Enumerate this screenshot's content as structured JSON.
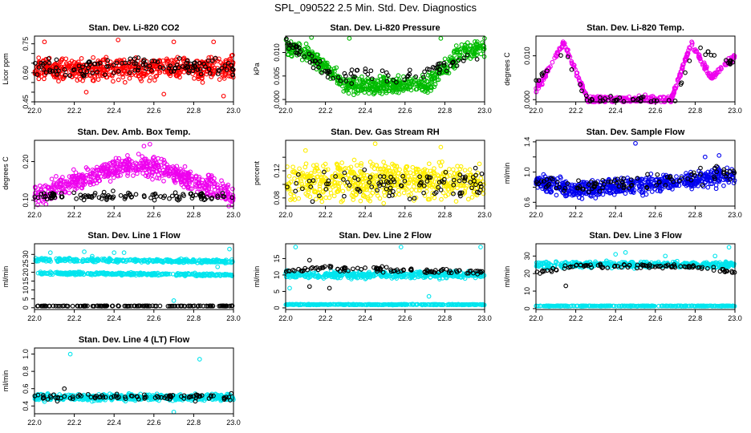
{
  "figure_title": "SPL_090522  2.5 Min. Std. Dev. Diagnostics",
  "chart_data": [
    {
      "type": "scatter",
      "title": "Stan. Dev. Li-820 CO2",
      "xlabel": "",
      "ylabel": "Licor ppm",
      "xlim": [
        22.0,
        23.0
      ],
      "ylim": [
        0.45,
        0.79
      ],
      "xticks": [
        "22.0",
        "22.2",
        "22.4",
        "22.6",
        "22.8",
        "23.0"
      ],
      "yticks": [
        "0.45",
        "0.60",
        "0.75"
      ],
      "yticks_minor": [
        "0.50",
        "0.55",
        "0.65",
        "0.70"
      ],
      "colors": {
        "dense": "#ff0000",
        "sparse": "#000000"
      },
      "series": [
        {
          "name": "dense",
          "color": "#ff0000",
          "n": 600,
          "segments": [
            {
              "x0": 22.0,
              "x1": 23.0,
              "y0": 0.62,
              "y1": 0.62
            }
          ],
          "spread": 0.05,
          "outliers": [
            [
              22.05,
              0.76
            ],
            [
              22.42,
              0.77
            ],
            [
              22.7,
              0.76
            ],
            [
              22.9,
              0.76
            ],
            [
              22.26,
              0.5
            ],
            [
              22.65,
              0.49
            ],
            [
              22.95,
              0.48
            ]
          ]
        },
        {
          "name": "sparse",
          "color": "#000000",
          "n": 120,
          "segments": [
            {
              "x0": 22.0,
              "x1": 23.0,
              "y0": 0.63,
              "y1": 0.63
            }
          ],
          "spread": 0.04,
          "outliers": []
        }
      ]
    },
    {
      "type": "scatter",
      "title": "Stan. Dev. Li-820 Pressure",
      "xlabel": "",
      "ylabel": "kPa",
      "xlim": [
        22.0,
        23.0
      ],
      "ylim": [
        -0.0005,
        0.0135
      ],
      "xticks": [
        "22.0",
        "22.2",
        "22.4",
        "22.6",
        "22.8",
        "23.0"
      ],
      "yticks": [
        "0.000",
        "0.005",
        "0.010"
      ],
      "colors": {
        "dense": "#00bb00",
        "sparse": "#000000"
      },
      "series": [
        {
          "name": "dense",
          "color": "#00bb00",
          "n": 600,
          "segments": [
            {
              "x0": 22.0,
              "x1": 22.12,
              "y0": 0.011,
              "y1": 0.01
            },
            {
              "x0": 22.12,
              "x1": 22.3,
              "y0": 0.01,
              "y1": 0.003
            },
            {
              "x0": 22.3,
              "x1": 22.7,
              "y0": 0.003,
              "y1": 0.003
            },
            {
              "x0": 22.7,
              "x1": 22.88,
              "y0": 0.003,
              "y1": 0.01
            },
            {
              "x0": 22.88,
              "x1": 23.0,
              "y0": 0.01,
              "y1": 0.011
            }
          ],
          "spread": 0.0016,
          "outliers": [
            [
              22.32,
              0.013
            ],
            [
              22.78,
              0.013
            ],
            [
              23.0,
              0.013
            ],
            [
              22.13,
              0.0132
            ]
          ]
        },
        {
          "name": "sparse",
          "color": "#000000",
          "n": 90,
          "segments": [
            {
              "x0": 22.0,
              "x1": 22.25,
              "y0": 0.012,
              "y1": 0.005
            },
            {
              "x0": 22.25,
              "x1": 22.7,
              "y0": 0.005,
              "y1": 0.005
            },
            {
              "x0": 22.7,
              "x1": 23.0,
              "y0": 0.006,
              "y1": 0.01
            }
          ],
          "spread": 0.0012,
          "outliers": []
        }
      ]
    },
    {
      "type": "scatter",
      "title": "Stan. Dev. Li-820 Temp.",
      "xlabel": "",
      "ylabel": "degrees C",
      "xlim": [
        22.0,
        23.0
      ],
      "ylim": [
        -0.0005,
        0.0145
      ],
      "xticks": [
        "22.0",
        "22.2",
        "22.4",
        "22.6",
        "22.8",
        "23.0"
      ],
      "yticks": [
        "0.000",
        "0.010"
      ],
      "colors": {
        "dense": "#ee00ee",
        "sparse": "#000000"
      },
      "series": [
        {
          "name": "dense",
          "color": "#ee00ee",
          "n": 420,
          "segments": [
            {
              "x0": 22.0,
              "x1": 22.14,
              "y0": 0.002,
              "y1": 0.013
            },
            {
              "x0": 22.14,
              "x1": 22.26,
              "y0": 0.013,
              "y1": 0.0
            },
            {
              "x0": 22.26,
              "x1": 22.68,
              "y0": 0.0,
              "y1": 0.0
            },
            {
              "x0": 22.68,
              "x1": 22.78,
              "y0": 0.0,
              "y1": 0.013
            },
            {
              "x0": 22.78,
              "x1": 22.88,
              "y0": 0.013,
              "y1": 0.005
            },
            {
              "x0": 22.88,
              "x1": 23.0,
              "y0": 0.005,
              "y1": 0.01
            }
          ],
          "spread": 0.0007,
          "outliers": []
        },
        {
          "name": "sparse",
          "color": "#000000",
          "n": 60,
          "segments": [
            {
              "x0": 22.0,
              "x1": 22.14,
              "y0": 0.004,
              "y1": 0.011
            },
            {
              "x0": 22.14,
              "x1": 22.26,
              "y0": 0.011,
              "y1": 0.0
            },
            {
              "x0": 22.26,
              "x1": 22.7,
              "y0": 0.0,
              "y1": 0.0
            },
            {
              "x0": 22.7,
              "x1": 22.8,
              "y0": 0.0,
              "y1": 0.012
            },
            {
              "x0": 22.8,
              "x1": 23.0,
              "y0": 0.012,
              "y1": 0.008
            }
          ],
          "spread": 0.0006,
          "outliers": []
        }
      ]
    },
    {
      "type": "scatter",
      "title": "Stan. Dev. Amb. Box Temp.",
      "xlabel": "",
      "ylabel": "degrees C",
      "xlim": [
        22.0,
        23.0
      ],
      "ylim": [
        0.085,
        0.255
      ],
      "xticks": [
        "22.0",
        "22.2",
        "22.4",
        "22.6",
        "22.8",
        "23.0"
      ],
      "yticks": [
        "0.10",
        "0.20"
      ],
      "colors": {
        "dense": "#ee00ee",
        "sparse": "#000000"
      },
      "series": [
        {
          "name": "dense",
          "color": "#ee00ee",
          "n": 600,
          "segments": [
            {
              "x0": 22.0,
              "x1": 22.45,
              "y0": 0.11,
              "y1": 0.19
            },
            {
              "x0": 22.45,
              "x1": 22.6,
              "y0": 0.19,
              "y1": 0.19
            },
            {
              "x0": 22.6,
              "x1": 23.0,
              "y0": 0.19,
              "y1": 0.11
            }
          ],
          "spread": 0.022,
          "outliers": [
            [
              22.58,
              0.245
            ],
            [
              22.55,
              0.24
            ]
          ]
        },
        {
          "name": "sparse",
          "color": "#000000",
          "n": 110,
          "segments": [
            {
              "x0": 22.0,
              "x1": 23.0,
              "y0": 0.11,
              "y1": 0.11
            }
          ],
          "spread": 0.009,
          "outliers": []
        }
      ]
    },
    {
      "type": "scatter",
      "title": "Stan. Dev. Gas Stream RH",
      "xlabel": "",
      "ylabel": "percent",
      "xlim": [
        22.0,
        23.0
      ],
      "ylim": [
        0.068,
        0.165
      ],
      "xticks": [
        "22.0",
        "22.2",
        "22.4",
        "22.6",
        "22.8",
        "23.0"
      ],
      "yticks": [
        "0.08",
        "0.12"
      ],
      "yticks_minor": [
        "0.10",
        "0.14"
      ],
      "colors": {
        "dense": "#ffee00",
        "sparse": "#000000"
      },
      "series": [
        {
          "name": "dense",
          "color": "#ffee00",
          "n": 600,
          "segments": [
            {
              "x0": 22.0,
              "x1": 23.0,
              "y0": 0.105,
              "y1": 0.105
            }
          ],
          "spread": 0.022,
          "outliers": [
            [
              22.45,
              0.16
            ],
            [
              22.78,
              0.155
            ],
            [
              22.1,
              0.15
            ]
          ]
        },
        {
          "name": "sparse",
          "color": "#000000",
          "n": 100,
          "segments": [
            {
              "x0": 22.0,
              "x1": 23.0,
              "y0": 0.1,
              "y1": 0.1
            }
          ],
          "spread": 0.018,
          "outliers": []
        }
      ]
    },
    {
      "type": "scatter",
      "title": "Stan. Dev. Sample Flow",
      "xlabel": "",
      "ylabel": "ml/min",
      "xlim": [
        22.0,
        23.0
      ],
      "ylim": [
        0.55,
        1.42
      ],
      "xticks": [
        "22.0",
        "22.2",
        "22.4",
        "22.6",
        "22.8",
        "23.0"
      ],
      "yticks": [
        "0.6",
        "1.0",
        "1.4"
      ],
      "yticks_minor": [
        "0.8",
        "1.2"
      ],
      "colors": {
        "dense": "#0000ee",
        "sparse": "#000000"
      },
      "series": [
        {
          "name": "dense",
          "color": "#0000ee",
          "n": 600,
          "segments": [
            {
              "x0": 22.0,
              "x1": 22.2,
              "y0": 0.88,
              "y1": 0.75
            },
            {
              "x0": 22.2,
              "x1": 22.4,
              "y0": 0.75,
              "y1": 0.8
            },
            {
              "x0": 22.4,
              "x1": 23.0,
              "y0": 0.8,
              "y1": 0.95
            }
          ],
          "spread": 0.09,
          "outliers": [
            [
              22.5,
              1.38
            ],
            [
              22.85,
              1.2
            ],
            [
              22.92,
              1.22
            ]
          ]
        },
        {
          "name": "sparse",
          "color": "#000000",
          "n": 90,
          "segments": [
            {
              "x0": 22.0,
              "x1": 22.2,
              "y0": 0.9,
              "y1": 0.78
            },
            {
              "x0": 22.2,
              "x1": 23.0,
              "y0": 0.78,
              "y1": 1.0
            }
          ],
          "spread": 0.08,
          "outliers": []
        }
      ]
    },
    {
      "type": "scatter",
      "title": "Stan. Dev. Line 1 Flow",
      "xlabel": "",
      "ylabel": "ml/min",
      "xlim": [
        22.0,
        23.0
      ],
      "ylim": [
        -1,
        36
      ],
      "xticks": [
        "22.0",
        "22.2",
        "22.4",
        "22.6",
        "22.8",
        "23.0"
      ],
      "yticks": [
        "0",
        "5",
        "10",
        "15",
        "20",
        "25",
        "30"
      ],
      "colors": {
        "dense": "#00e5ee",
        "sparse": "#000000"
      },
      "series": [
        {
          "name": "upper",
          "color": "#00e5ee",
          "n": 320,
          "segments": [
            {
              "x0": 22.0,
              "x1": 23.0,
              "y0": 27,
              "y1": 26
            }
          ],
          "spread": 0.8,
          "outliers": [
            [
              22.08,
              31
            ],
            [
              22.29,
              29
            ],
            [
              22.25,
              31.5
            ],
            [
              22.4,
              31
            ],
            [
              22.45,
              31
            ],
            [
              22.92,
              23
            ],
            [
              22.98,
              33
            ]
          ]
        },
        {
          "name": "lower",
          "color": "#00e5ee",
          "n": 320,
          "segments": [
            {
              "x0": 22.0,
              "x1": 23.0,
              "y0": 19.5,
              "y1": 18.5
            }
          ],
          "spread": 0.6,
          "outliers": [
            [
              22.7,
              4
            ]
          ]
        },
        {
          "name": "baseline",
          "color": "#000000",
          "n": 140,
          "segments": [
            {
              "x0": 22.0,
              "x1": 23.0,
              "y0": 1.0,
              "y1": 1.0
            }
          ],
          "spread": 0.1,
          "outliers": []
        }
      ]
    },
    {
      "type": "scatter",
      "title": "Stan. Dev. Line 2 Flow",
      "xlabel": "",
      "ylabel": "ml/min",
      "xlim": [
        22.0,
        23.0
      ],
      "ylim": [
        -0.5,
        19.5
      ],
      "xticks": [
        "22.0",
        "22.2",
        "22.4",
        "22.6",
        "22.8",
        "23.0"
      ],
      "yticks": [
        "0",
        "5",
        "10",
        "15"
      ],
      "colors": {
        "dense": "#00e5ee",
        "sparse": "#000000"
      },
      "series": [
        {
          "name": "upper",
          "color": "#00e5ee",
          "n": 420,
          "segments": [
            {
              "x0": 22.0,
              "x1": 23.0,
              "y0": 10,
              "y1": 10
            }
          ],
          "spread": 0.9,
          "outliers": [
            [
              22.05,
              18.5
            ],
            [
              22.58,
              18.5
            ],
            [
              22.98,
              18.5
            ],
            [
              22.72,
              3.5
            ],
            [
              22.02,
              6
            ]
          ]
        },
        {
          "name": "lower",
          "color": "#00e5ee",
          "n": 300,
          "segments": [
            {
              "x0": 22.0,
              "x1": 23.0,
              "y0": 1.0,
              "y1": 1.0
            }
          ],
          "spread": 0.1,
          "outliers": []
        },
        {
          "name": "sparse",
          "color": "#000000",
          "n": 100,
          "segments": [
            {
              "x0": 22.0,
              "x1": 22.2,
              "y0": 11,
              "y1": 12
            },
            {
              "x0": 22.2,
              "x1": 23.0,
              "y0": 12,
              "y1": 11
            }
          ],
          "spread": 0.6,
          "outliers": [
            [
              22.12,
              14.5
            ],
            [
              22.12,
              6.5
            ],
            [
              22.22,
              6
            ]
          ]
        }
      ]
    },
    {
      "type": "scatter",
      "title": "Stan. Dev. Line 3 Flow",
      "xlabel": "",
      "ylabel": "ml/min",
      "xlim": [
        22.0,
        23.0
      ],
      "ylim": [
        -0.5,
        37
      ],
      "xticks": [
        "22.0",
        "22.2",
        "22.4",
        "22.6",
        "22.8",
        "23.0"
      ],
      "yticks": [
        "0",
        "10",
        "20",
        "30"
      ],
      "colors": {
        "dense": "#00e5ee",
        "sparse": "#000000"
      },
      "series": [
        {
          "name": "upper",
          "color": "#00e5ee",
          "n": 420,
          "segments": [
            {
              "x0": 22.0,
              "x1": 23.0,
              "y0": 25,
              "y1": 25
            }
          ],
          "spread": 1.4,
          "outliers": [
            [
              22.4,
              31
            ],
            [
              22.45,
              32
            ],
            [
              22.65,
              30
            ],
            [
              22.97,
              35
            ],
            [
              22.9,
              30
            ]
          ]
        },
        {
          "name": "lower",
          "color": "#00e5ee",
          "n": 300,
          "segments": [
            {
              "x0": 22.0,
              "x1": 23.0,
              "y0": 1.5,
              "y1": 1.5
            }
          ],
          "spread": 0.15,
          "outliers": []
        },
        {
          "name": "sparse",
          "color": "#000000",
          "n": 100,
          "segments": [
            {
              "x0": 22.0,
              "x1": 22.2,
              "y0": 21,
              "y1": 24.5
            },
            {
              "x0": 22.2,
              "x1": 22.8,
              "y0": 24.5,
              "y1": 24
            },
            {
              "x0": 22.8,
              "x1": 23.0,
              "y0": 24,
              "y1": 20.5
            }
          ],
          "spread": 1.0,
          "outliers": [
            [
              22.15,
              13
            ]
          ]
        }
      ]
    },
    {
      "type": "scatter",
      "title": "Stan. Dev. Line 4 (LT) Flow",
      "xlabel": "",
      "ylabel": "ml/min",
      "xlim": [
        22.0,
        23.0
      ],
      "ylim": [
        0.31,
        1.07
      ],
      "xticks": [
        "22.0",
        "22.2",
        "22.4",
        "22.6",
        "22.8",
        "23.0"
      ],
      "yticks": [
        "0.4",
        "0.6",
        "0.8",
        "1.0"
      ],
      "colors": {
        "dense": "#00e5ee",
        "sparse": "#000000"
      },
      "series": [
        {
          "name": "dense",
          "color": "#00e5ee",
          "n": 520,
          "segments": [
            {
              "x0": 22.0,
              "x1": 23.0,
              "y0": 0.5,
              "y1": 0.5
            }
          ],
          "spread": 0.03,
          "outliers": [
            [
              22.18,
              1.0
            ],
            [
              22.83,
              0.94
            ],
            [
              22.7,
              0.33
            ],
            [
              22.05,
              0.45
            ]
          ]
        },
        {
          "name": "sparse",
          "color": "#000000",
          "n": 90,
          "segments": [
            {
              "x0": 22.0,
              "x1": 23.0,
              "y0": 0.5,
              "y1": 0.5
            }
          ],
          "spread": 0.03,
          "outliers": [
            [
              22.15,
              0.6
            ]
          ]
        }
      ]
    }
  ]
}
